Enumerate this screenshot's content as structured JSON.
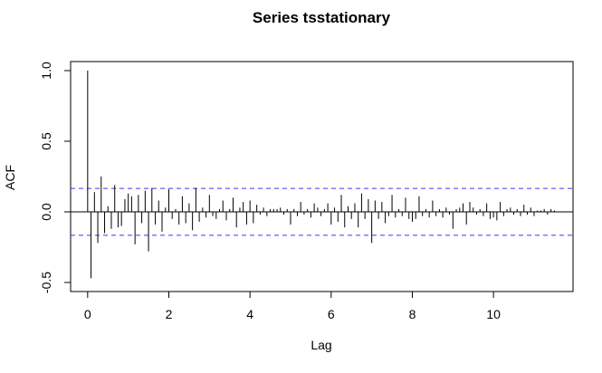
{
  "chart_data": {
    "type": "acf",
    "title": "Series  tsstationary",
    "x_label": "Lag",
    "y_label": "ACF",
    "x": [
      0,
      0.083,
      0.167,
      0.25,
      0.333,
      0.417,
      0.5,
      0.583,
      0.667,
      0.75,
      0.833,
      0.917,
      1,
      1.083,
      1.167,
      1.25,
      1.333,
      1.417,
      1.5,
      1.583,
      1.667,
      1.75,
      1.833,
      1.917,
      2,
      2.083,
      2.167,
      2.25,
      2.333,
      2.417,
      2.5,
      2.583,
      2.667,
      2.75,
      2.833,
      2.917,
      3,
      3.083,
      3.167,
      3.25,
      3.333,
      3.417,
      3.5,
      3.583,
      3.667,
      3.75,
      3.833,
      3.917,
      4,
      4.083,
      4.167,
      4.25,
      4.333,
      4.417,
      4.5,
      4.583,
      4.667,
      4.75,
      4.833,
      4.917,
      5,
      5.083,
      5.167,
      5.25,
      5.333,
      5.417,
      5.5,
      5.583,
      5.667,
      5.75,
      5.833,
      5.917,
      6,
      6.083,
      6.167,
      6.25,
      6.333,
      6.417,
      6.5,
      6.583,
      6.667,
      6.75,
      6.833,
      6.917,
      7,
      7.083,
      7.167,
      7.25,
      7.333,
      7.417,
      7.5,
      7.583,
      7.667,
      7.75,
      7.833,
      7.917,
      8,
      8.083,
      8.167,
      8.25,
      8.333,
      8.417,
      8.5,
      8.583,
      8.667,
      8.75,
      8.833,
      8.917,
      9,
      9.083,
      9.167,
      9.25,
      9.333,
      9.417,
      9.5,
      9.583,
      9.667,
      9.75,
      9.833,
      9.917,
      10,
      10.083,
      10.167,
      10.25,
      10.333,
      10.417,
      10.5,
      10.583,
      10.667,
      10.75,
      10.833,
      10.917,
      11,
      11.083,
      11.167,
      11.25,
      11.333,
      11.417,
      11.5
    ],
    "values": [
      1.0,
      -0.47,
      0.14,
      -0.22,
      0.25,
      -0.15,
      0.04,
      -0.12,
      0.19,
      -0.11,
      -0.1,
      0.09,
      0.13,
      0.11,
      -0.23,
      0.12,
      -0.08,
      0.15,
      -0.28,
      0.17,
      -0.09,
      0.08,
      -0.14,
      0.03,
      0.16,
      -0.05,
      0.02,
      -0.09,
      0.11,
      -0.08,
      0.06,
      -0.13,
      0.17,
      -0.07,
      0.03,
      -0.04,
      0.12,
      -0.03,
      -0.05,
      0.02,
      0.08,
      -0.06,
      0.02,
      0.1,
      -0.11,
      0.03,
      0.07,
      -0.09,
      0.08,
      -0.08,
      0.05,
      -0.02,
      0.03,
      -0.03,
      0.02,
      0.02,
      0.02,
      0.03,
      -0.02,
      0.02,
      -0.09,
      0.02,
      -0.03,
      0.07,
      -0.02,
      0.02,
      -0.04,
      0.06,
      0.03,
      -0.03,
      0.02,
      0.06,
      -0.09,
      0.03,
      -0.07,
      0.12,
      -0.11,
      0.04,
      -0.05,
      0.06,
      -0.11,
      0.13,
      -0.05,
      0.09,
      -0.22,
      0.08,
      -0.05,
      0.07,
      -0.08,
      -0.03,
      0.12,
      -0.04,
      0.02,
      -0.03,
      0.1,
      -0.05,
      -0.07,
      -0.05,
      0.11,
      -0.03,
      0.02,
      -0.04,
      0.08,
      -0.03,
      0.02,
      -0.04,
      0.03,
      -0.02,
      -0.12,
      0.02,
      0.03,
      0.06,
      -0.09,
      0.07,
      0.03,
      -0.02,
      0.02,
      -0.03,
      0.06,
      -0.05,
      -0.04,
      -0.06,
      0.07,
      -0.03,
      0.02,
      0.03,
      -0.02,
      0.02,
      -0.03,
      0.05,
      -0.02,
      0.03,
      -0.03,
      0.01,
      0.01,
      0.02,
      -0.02,
      0.02,
      0.01
    ],
    "color": "#000000",
    "conf_limits": [
      0.166,
      -0.166
    ],
    "conf_color": "#3a3af0",
    "xlim": [
      -0.42,
      11.96
    ],
    "ylim": [
      -0.564,
      1.064
    ],
    "xticks": [
      0,
      2,
      4,
      6,
      8,
      10
    ],
    "yticks": [
      -0.5,
      {
        "value": 0,
        "label": "0.0"
      },
      0.5,
      {
        "value": 1,
        "label": "1.0"
      }
    ]
  }
}
